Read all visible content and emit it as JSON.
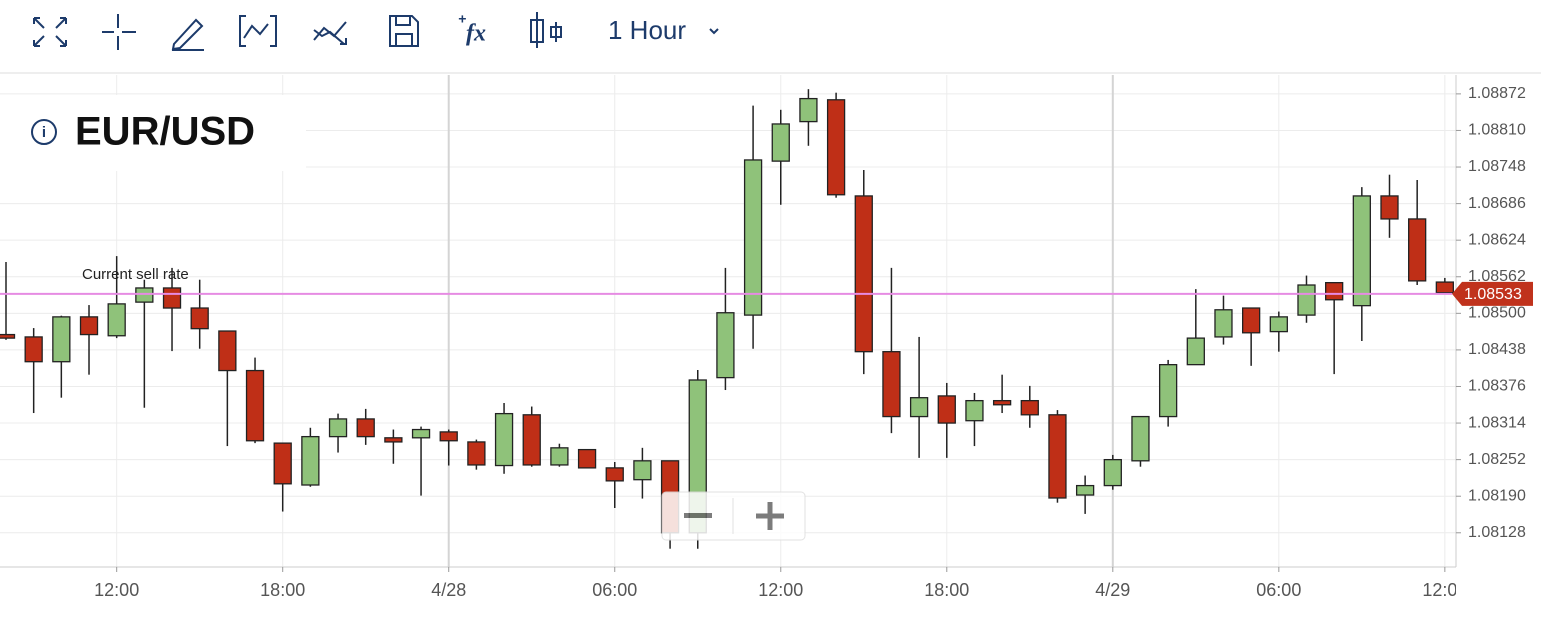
{
  "toolbar": {
    "timeframe": "1 Hour"
  },
  "chart_data": {
    "type": "candlestick",
    "title": "EUR/USD",
    "categories": [
      null,
      null,
      null,
      null,
      "12:00",
      null,
      null,
      null,
      null,
      null,
      "18:00",
      null,
      null,
      null,
      null,
      null,
      "4/28",
      null,
      null,
      null,
      null,
      null,
      "06:00",
      null,
      null,
      null,
      null,
      null,
      "12:00",
      null,
      null,
      null,
      null,
      null,
      "18:00",
      null,
      null,
      null,
      null,
      null,
      "4/29",
      null,
      null,
      null,
      null,
      null,
      "06:00",
      null,
      null,
      null,
      null,
      null,
      "12:00"
    ],
    "open": [
      1.08464,
      1.0846,
      1.08418,
      1.08494,
      1.08462,
      1.08519,
      1.08543,
      1.08509,
      1.0847,
      1.08403,
      1.0828,
      1.08209,
      1.08291,
      1.08321,
      1.08289,
      1.08289,
      1.08299,
      1.08282,
      1.08242,
      1.08328,
      1.08243,
      1.08269,
      1.08238,
      1.08218,
      1.0825,
      1.08128,
      1.08391,
      1.08497,
      1.08758,
      1.08825,
      1.08862,
      1.08699,
      1.08435,
      1.08325,
      1.0836,
      1.08318,
      1.08352,
      1.08352,
      1.08328,
      1.08192,
      1.08208,
      1.0825,
      1.08325,
      1.08413,
      1.0846,
      1.08509,
      1.08469,
      1.08497,
      1.08552,
      1.08513,
      1.08699,
      1.0866,
      1.08553
    ],
    "high": [
      1.08587,
      1.08475,
      1.08496,
      1.08514,
      1.08597,
      1.08557,
      1.08577,
      1.08557,
      1.0847,
      1.08425,
      1.0828,
      1.08306,
      1.0833,
      1.08338,
      1.08303,
      1.08308,
      1.08303,
      1.08286,
      1.08348,
      1.08342,
      1.08279,
      1.08269,
      1.08248,
      1.08272,
      1.0825,
      1.08404,
      1.08577,
      1.08852,
      1.08845,
      1.0888,
      1.08874,
      1.08743,
      1.08577,
      1.0846,
      1.08382,
      1.08365,
      1.08396,
      1.08377,
      1.08336,
      1.08225,
      1.0826,
      1.08325,
      1.08421,
      1.08541,
      1.0853,
      1.08509,
      1.08503,
      1.08564,
      1.08552,
      1.08714,
      1.08735,
      1.08726,
      1.0856
    ],
    "low": [
      1.08455,
      1.08331,
      1.08357,
      1.08396,
      1.08458,
      1.0834,
      1.08436,
      1.0844,
      1.08275,
      1.0828,
      1.08164,
      1.08206,
      1.08264,
      1.08277,
      1.08245,
      1.08191,
      1.08242,
      1.08235,
      1.08228,
      1.0824,
      1.0824,
      1.08238,
      1.0817,
      1.08186,
      1.08101,
      1.08101,
      1.0837,
      1.0844,
      1.08684,
      1.08784,
      1.08696,
      1.08397,
      1.08297,
      1.08255,
      1.08255,
      1.08275,
      1.08331,
      1.08306,
      1.08179,
      1.0816,
      1.08201,
      1.0824,
      1.08308,
      1.08413,
      1.08447,
      1.08411,
      1.08435,
      1.08484,
      1.08397,
      1.08453,
      1.08628,
      1.08548,
      1.08535
    ],
    "close": [
      1.08458,
      1.08418,
      1.08494,
      1.08464,
      1.08516,
      1.08543,
      1.08509,
      1.08474,
      1.08403,
      1.08284,
      1.08211,
      1.08291,
      1.08321,
      1.08291,
      1.08282,
      1.08303,
      1.08284,
      1.08243,
      1.0833,
      1.08243,
      1.08272,
      1.08238,
      1.08216,
      1.0825,
      1.08128,
      1.08387,
      1.08501,
      1.0876,
      1.08821,
      1.08864,
      1.08701,
      1.08435,
      1.08325,
      1.08357,
      1.08314,
      1.08352,
      1.08345,
      1.08328,
      1.08187,
      1.08208,
      1.08252,
      1.08325,
      1.08413,
      1.08458,
      1.08506,
      1.08467,
      1.08494,
      1.08548,
      1.08523,
      1.08699,
      1.0866,
      1.08555,
      1.08535
    ],
    "up_color": "#8fc27a",
    "down_color": "#bf2f17",
    "ylim": [
      1.0807,
      1.08904
    ],
    "yticks": [
      1.08128,
      {
        "value": 1.0819,
        "label": "1.08190"
      },
      1.08252,
      1.08314,
      1.08376,
      1.08438,
      {
        "value": 1.085,
        "label": "1.08500"
      },
      1.08562,
      1.08624,
      1.08686,
      1.08748,
      {
        "value": 1.0881,
        "label": "1.08810"
      },
      1.08872
    ],
    "grid": true,
    "current_rate": {
      "label": "Current sell rate",
      "value": 1.08533,
      "color": "#e68be3",
      "label_color": "#c0321c"
    }
  }
}
